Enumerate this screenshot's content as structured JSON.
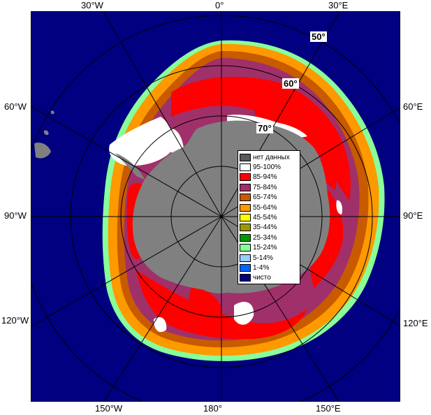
{
  "map": {
    "lon_labels_top": [
      "30°W",
      "0°",
      "30°E"
    ],
    "lon_labels_left": [
      "60°W",
      "90°W",
      "120°W"
    ],
    "lon_labels_right": [
      "60°E",
      "90°E",
      "120°E"
    ],
    "lon_labels_bottom": [
      "150°W",
      "180°",
      "150°E"
    ],
    "lat_labels": [
      "50°",
      "60°",
      "70°"
    ],
    "colors": {
      "ocean": "#000080",
      "land": "#808080",
      "graticule": "#000000"
    }
  },
  "legend": {
    "items": [
      {
        "label": "нет данных",
        "color": "#595959"
      },
      {
        "label": "95-100%",
        "color": "#ffffff"
      },
      {
        "label": "85-94%",
        "color": "#ff0000"
      },
      {
        "label": "75-84%",
        "color": "#a0306a"
      },
      {
        "label": "65-74%",
        "color": "#c85a00"
      },
      {
        "label": "55-64%",
        "color": "#ff9900"
      },
      {
        "label": "45-54%",
        "color": "#ffff00"
      },
      {
        "label": "35-44%",
        "color": "#9a9a00"
      },
      {
        "label": "25-34%",
        "color": "#009900"
      },
      {
        "label": "15-24%",
        "color": "#88ff99"
      },
      {
        "label": "5-14%",
        "color": "#99ccff"
      },
      {
        "label": "1-4%",
        "color": "#0066ff"
      },
      {
        "label": "чисто",
        "color": "#000080"
      }
    ]
  }
}
